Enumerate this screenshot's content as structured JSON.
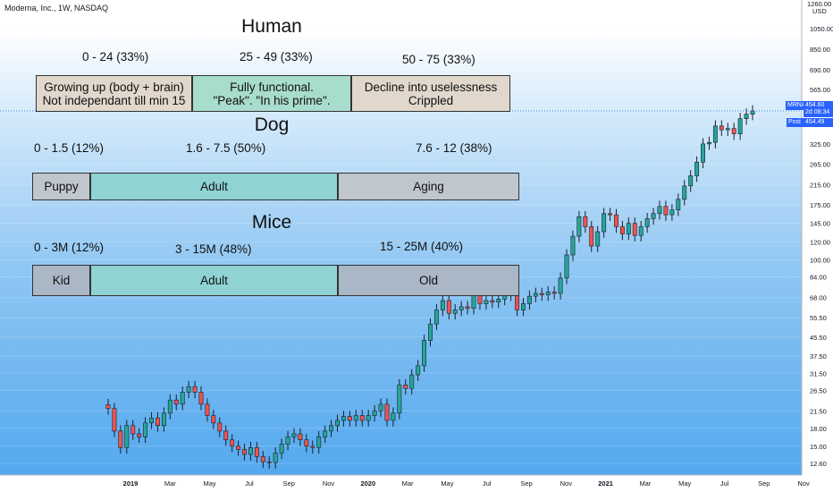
{
  "header": {
    "title": "Moderna, Inc., 1W, NASDAQ"
  },
  "axis": {
    "currency": "USD",
    "top_label": "1260.00"
  },
  "badges": {
    "symbol": "MRNA",
    "price": "454.60",
    "countdown": "2d 08:34",
    "post_label": "Post",
    "post_price": "454.49",
    "color_symbol": "#2962ff",
    "color_post": "#2962ff"
  },
  "annotations": {
    "human": {
      "title": "Human",
      "ranges": [
        "0 - 24  (33%)",
        "25 - 49  (33%)",
        "50 - 75  (33%)"
      ],
      "segments": [
        {
          "text": "Growing up (body + brain)\nNot independant till min 15",
          "color": "#e1d7cc"
        },
        {
          "text": "Fully functional.\n\"Peak\". \"In his prime\".",
          "color": "#a8dccc"
        },
        {
          "text": "Decline into uselessness\nCrippled",
          "color": "#e1d7cc"
        }
      ]
    },
    "dog": {
      "title": "Dog",
      "ranges": [
        "0 - 1.5  (12%)",
        "1.6 - 7.5 (50%)",
        "7.6 - 12  (38%)"
      ],
      "segments": [
        {
          "text": "Puppy",
          "color": "#c0c6cd"
        },
        {
          "text": "Adult",
          "color": "#8fd3d3"
        },
        {
          "text": "Aging",
          "color": "#c0c6cd"
        }
      ]
    },
    "mice": {
      "title": "Mice",
      "ranges": [
        "0 - 3M  (12%)",
        "3 - 15M (48%)",
        "15 - 25M (40%)"
      ],
      "segments": [
        {
          "text": "Kid",
          "color": "#aab7c6"
        },
        {
          "text": "Adult",
          "color": "#8fd3d3"
        },
        {
          "text": "Old",
          "color": "#aab7c6"
        }
      ]
    }
  },
  "chart_data": {
    "type": "candlestick",
    "title": "Moderna, Inc., 1W, NASDAQ",
    "y_scale": "log",
    "ylim": [
      11.5,
      1260
    ],
    "y_ticks": [
      12.6,
      15.0,
      18.0,
      21.5,
      26.5,
      31.5,
      37.5,
      45.5,
      55.5,
      68.0,
      84.0,
      100.0,
      120.0,
      145.0,
      175.0,
      215.0,
      265.0,
      325.0,
      565.0,
      690.0,
      850.0,
      1050.0
    ],
    "x_labels": [
      "2019",
      "Mar",
      "May",
      "Jul",
      "Sep",
      "Nov",
      "2020",
      "Mar",
      "May",
      "Jul",
      "Sep",
      "Nov",
      "2021",
      "Mar",
      "May",
      "Jul",
      "Sep",
      "Nov"
    ],
    "grid": true,
    "up_color": "#26a69a",
    "down_color": "#ef5350",
    "close_series_approx": [
      22.0,
      17.5,
      14.8,
      18.5,
      17.0,
      16.5,
      19.0,
      20.0,
      18.5,
      21.0,
      24.0,
      23.0,
      26.0,
      27.5,
      26.0,
      23.0,
      20.5,
      19.0,
      17.5,
      16.0,
      15.0,
      14.5,
      13.8,
      14.8,
      13.5,
      12.8,
      12.7,
      14.0,
      15.3,
      16.5,
      17.0,
      16.0,
      15.0,
      14.8,
      16.5,
      17.5,
      18.5,
      19.5,
      20.3,
      19.5,
      20.5,
      19.5,
      20.5,
      21.5,
      23.0,
      19.5,
      21.0,
      28.0,
      27.0,
      31.0,
      34.0,
      44.0,
      52.0,
      60.0,
      66.0,
      58.0,
      60.0,
      62.0,
      61.0,
      71.0,
      64.0,
      66.0,
      65.0,
      67.0,
      72.0,
      70.0,
      60.0,
      64.0,
      69.0,
      71.0,
      70.0,
      72.0,
      71.0,
      83.0,
      105.0,
      127.0,
      155.0,
      140.0,
      115.0,
      133.0,
      160.0,
      158.0,
      140.0,
      130.0,
      145.0,
      128.0,
      140.0,
      152.0,
      160.0,
      172.0,
      158.0,
      166.0,
      185.0,
      212.0,
      235.0,
      270.0,
      325.0,
      330.0,
      390.0,
      375.0,
      380.0,
      360.0,
      420.0,
      440.0,
      454.6
    ]
  }
}
